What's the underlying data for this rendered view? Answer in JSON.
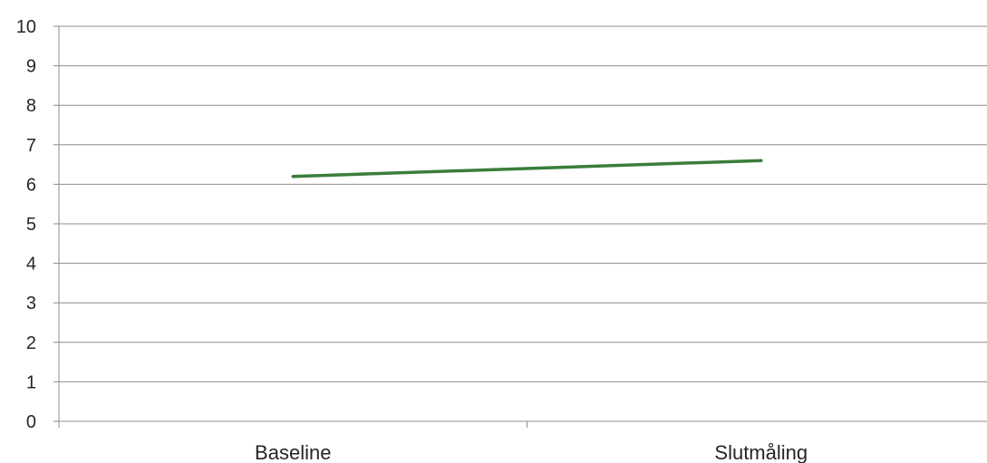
{
  "chart_data": {
    "type": "line",
    "categories": [
      "Baseline",
      "Slutmåling"
    ],
    "series": [
      {
        "values": [
          6.2,
          6.6
        ],
        "color": "#3a7d3a"
      }
    ],
    "ylim": [
      0,
      10
    ],
    "yticks": [
      0,
      1,
      2,
      3,
      4,
      5,
      6,
      7,
      8,
      9,
      10
    ],
    "grid": true,
    "legend": "none",
    "title": "",
    "xlabel": "",
    "ylabel": ""
  }
}
